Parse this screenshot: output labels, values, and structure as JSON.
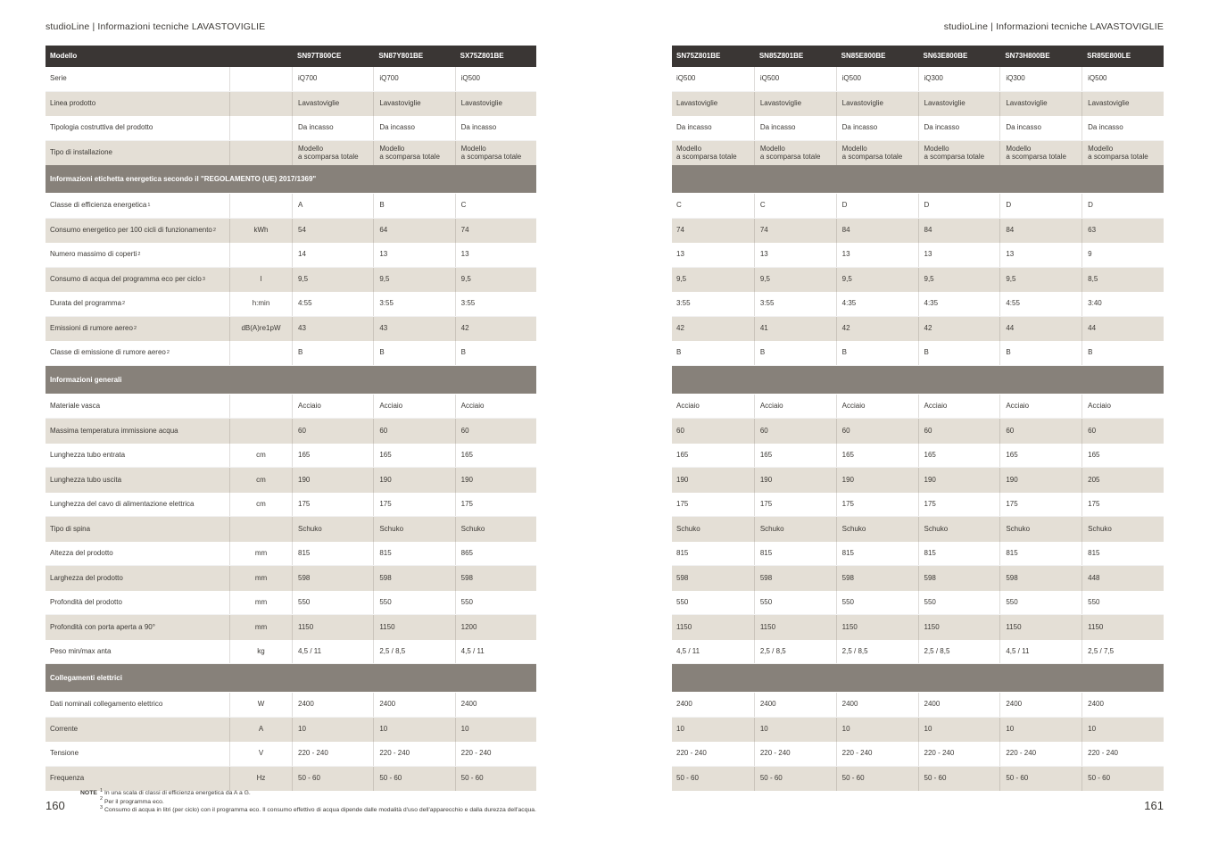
{
  "colors": {
    "header_bar": "#3a3634",
    "section_bar": "#87817a",
    "row_beige": "#e4dfd6",
    "text": "#3c3935"
  },
  "left_page": {
    "header": "studioLine | Informazioni tecniche LAVASTOVIGLIE",
    "page_number": "160",
    "model_header_label": "Modello",
    "models": [
      "SN97T800CE",
      "SN87Y801BE",
      "SX75Z801BE"
    ]
  },
  "right_page": {
    "header": "studioLine | Informazioni tecniche LAVASTOVIGLIE",
    "page_number": "161",
    "models": [
      "SN75Z801BE",
      "SN85Z801BE",
      "SN85E800BE",
      "SN63E800BE",
      "SN73H800BE",
      "SR85E800LE"
    ]
  },
  "rows": [
    {
      "type": "data",
      "label": "Serie",
      "unit": "",
      "left": [
        "iQ700",
        "iQ700",
        "iQ500"
      ],
      "right": [
        "iQ500",
        "iQ500",
        "iQ500",
        "iQ300",
        "iQ300",
        "iQ500"
      ]
    },
    {
      "type": "data",
      "label": "Linea prodotto",
      "unit": "",
      "left": [
        "Lavastoviglie",
        "Lavastoviglie",
        "Lavastoviglie"
      ],
      "right": [
        "Lavastoviglie",
        "Lavastoviglie",
        "Lavastoviglie",
        "Lavastoviglie",
        "Lavastoviglie",
        "Lavastoviglie"
      ]
    },
    {
      "type": "data",
      "label": "Tipologia costruttiva del prodotto",
      "unit": "",
      "left": [
        "Da incasso",
        "Da incasso",
        "Da incasso"
      ],
      "right": [
        "Da incasso",
        "Da incasso",
        "Da incasso",
        "Da incasso",
        "Da incasso",
        "Da incasso"
      ]
    },
    {
      "type": "data",
      "label": "Tipo di installazione",
      "unit": "",
      "left": [
        "Modello\na scomparsa totale",
        "Modello\na scomparsa totale",
        "Modello\na scomparsa totale"
      ],
      "right": [
        "Modello\na scomparsa totale",
        "Modello\na scomparsa totale",
        "Modello\na scomparsa totale",
        "Modello\na scomparsa totale",
        "Modello\na scomparsa totale",
        "Modello\na scomparsa totale"
      ]
    },
    {
      "type": "section",
      "label": "Informazioni etichetta energetica secondo il \"REGOLAMENTO (UE) 2017/1369\""
    },
    {
      "type": "data",
      "label": "Classe di efficienza energetica",
      "sup": "1",
      "unit": "",
      "left": [
        "A",
        "B",
        "C"
      ],
      "right": [
        "C",
        "C",
        "D",
        "D",
        "D",
        "D"
      ]
    },
    {
      "type": "data",
      "label": "Consumo energetico per 100 cicli di funzionamento",
      "sup": "2",
      "unit": "kWh",
      "left": [
        "54",
        "64",
        "74"
      ],
      "right": [
        "74",
        "74",
        "84",
        "84",
        "84",
        "63"
      ]
    },
    {
      "type": "data",
      "label": "Numero massimo di coperti",
      "sup": "2",
      "unit": "",
      "left": [
        "14",
        "13",
        "13"
      ],
      "right": [
        "13",
        "13",
        "13",
        "13",
        "13",
        "9"
      ]
    },
    {
      "type": "data",
      "label": "Consumo di acqua del programma eco per ciclo",
      "sup": "3",
      "unit": "l",
      "left": [
        "9,5",
        "9,5",
        "9,5"
      ],
      "right": [
        "9,5",
        "9,5",
        "9,5",
        "9,5",
        "9,5",
        "8,5"
      ]
    },
    {
      "type": "data",
      "label": "Durata del programma",
      "sup": "2",
      "unit": "h:min",
      "left": [
        "4:55",
        "3:55",
        "3:55"
      ],
      "right": [
        "3:55",
        "3:55",
        "4:35",
        "4:35",
        "4:55",
        "3:40"
      ]
    },
    {
      "type": "data",
      "label": "Emissioni di rumore aereo",
      "sup": "2",
      "unit": "dB(A)re1pW",
      "left": [
        "43",
        "43",
        "42"
      ],
      "right": [
        "42",
        "41",
        "42",
        "42",
        "44",
        "44"
      ]
    },
    {
      "type": "data",
      "label": "Classe di emissione di rumore aereo",
      "sup": "2",
      "unit": "",
      "left": [
        "B",
        "B",
        "B"
      ],
      "right": [
        "B",
        "B",
        "B",
        "B",
        "B",
        "B"
      ]
    },
    {
      "type": "section",
      "label": "Informazioni generali"
    },
    {
      "type": "data",
      "label": "Materiale vasca",
      "unit": "",
      "left": [
        "Acciaio",
        "Acciaio",
        "Acciaio"
      ],
      "right": [
        "Acciaio",
        "Acciaio",
        "Acciaio",
        "Acciaio",
        "Acciaio",
        "Acciaio"
      ]
    },
    {
      "type": "data",
      "label": "Massima temperatura immissione acqua",
      "unit": "",
      "left": [
        "60",
        "60",
        "60"
      ],
      "right": [
        "60",
        "60",
        "60",
        "60",
        "60",
        "60"
      ]
    },
    {
      "type": "data",
      "label": "Lunghezza tubo entrata",
      "unit": "cm",
      "left": [
        "165",
        "165",
        "165"
      ],
      "right": [
        "165",
        "165",
        "165",
        "165",
        "165",
        "165"
      ]
    },
    {
      "type": "data",
      "label": "Lunghezza tubo uscita",
      "unit": "cm",
      "left": [
        "190",
        "190",
        "190"
      ],
      "right": [
        "190",
        "190",
        "190",
        "190",
        "190",
        "205"
      ]
    },
    {
      "type": "data",
      "label": "Lunghezza del cavo di alimentazione elettrica",
      "unit": "cm",
      "left": [
        "175",
        "175",
        "175"
      ],
      "right": [
        "175",
        "175",
        "175",
        "175",
        "175",
        "175"
      ]
    },
    {
      "type": "data",
      "label": "Tipo di spina",
      "unit": "",
      "left": [
        "Schuko",
        "Schuko",
        "Schuko"
      ],
      "right": [
        "Schuko",
        "Schuko",
        "Schuko",
        "Schuko",
        "Schuko",
        "Schuko"
      ]
    },
    {
      "type": "data",
      "label": "Altezza del prodotto",
      "unit": "mm",
      "left": [
        "815",
        "815",
        "865"
      ],
      "right": [
        "815",
        "815",
        "815",
        "815",
        "815",
        "815"
      ]
    },
    {
      "type": "data",
      "label": "Larghezza del prodotto",
      "unit": "mm",
      "left": [
        "598",
        "598",
        "598"
      ],
      "right": [
        "598",
        "598",
        "598",
        "598",
        "598",
        "448"
      ]
    },
    {
      "type": "data",
      "label": "Profondità del prodotto",
      "unit": "mm",
      "left": [
        "550",
        "550",
        "550"
      ],
      "right": [
        "550",
        "550",
        "550",
        "550",
        "550",
        "550"
      ]
    },
    {
      "type": "data",
      "label": "Profondità con porta aperta a 90°",
      "unit": "mm",
      "left": [
        "1150",
        "1150",
        "1200"
      ],
      "right": [
        "1150",
        "1150",
        "1150",
        "1150",
        "1150",
        "1150"
      ]
    },
    {
      "type": "data",
      "label": "Peso min/max anta",
      "unit": "kg",
      "left": [
        "4,5 / 11",
        "2,5 / 8,5",
        "4,5 / 11"
      ],
      "right": [
        "4,5 / 11",
        "2,5 / 8,5",
        "2,5 / 8,5",
        "2,5 / 8,5",
        "4,5 / 11",
        "2,5 / 7,5"
      ]
    },
    {
      "type": "section",
      "label": "Collegamenti elettrici"
    },
    {
      "type": "data",
      "label": "Dati nominali collegamento elettrico",
      "unit": "W",
      "left": [
        "2400",
        "2400",
        "2400"
      ],
      "right": [
        "2400",
        "2400",
        "2400",
        "2400",
        "2400",
        "2400"
      ]
    },
    {
      "type": "data",
      "label": "Corrente",
      "unit": "A",
      "left": [
        "10",
        "10",
        "10"
      ],
      "right": [
        "10",
        "10",
        "10",
        "10",
        "10",
        "10"
      ]
    },
    {
      "type": "data",
      "label": "Tensione",
      "unit": "V",
      "left": [
        "220 - 240",
        "220 - 240",
        "220 - 240"
      ],
      "right": [
        "220 - 240",
        "220 - 240",
        "220 - 240",
        "220 - 240",
        "220 - 240",
        "220 - 240"
      ]
    },
    {
      "type": "data",
      "label": "Frequenza",
      "unit": "Hz",
      "left": [
        "50 - 60",
        "50 - 60",
        "50 - 60"
      ],
      "right": [
        "50 - 60",
        "50 - 60",
        "50 - 60",
        "50 - 60",
        "50 - 60",
        "50 - 60"
      ]
    }
  ],
  "notes": {
    "label": "NOTE",
    "items": [
      {
        "sup": "1",
        "text": "In una scala di classi di efficienza energetica da A a G."
      },
      {
        "sup": "2",
        "text": "Per il programma eco."
      },
      {
        "sup": "3",
        "text": "Consumo di acqua in litri (per ciclo) con il programma eco. Il consumo effettivo di acqua dipende dalle modalità d'uso dell'apparecchio e dalla durezza dell'acqua."
      }
    ]
  }
}
